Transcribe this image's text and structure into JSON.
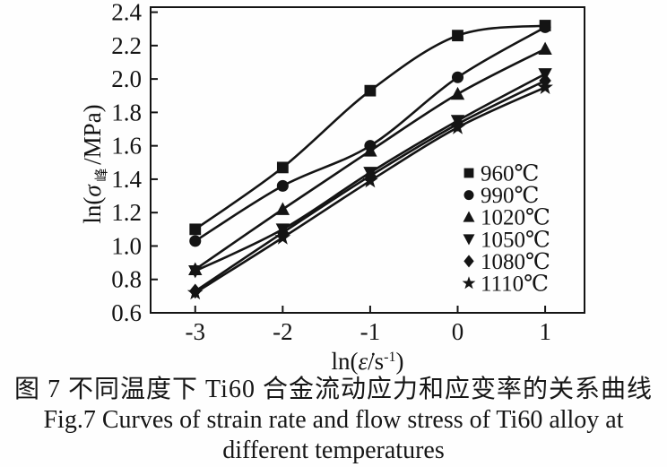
{
  "figure": {
    "caption_zh": "图 7  不同温度下 Ti60 合金流动应力和应变率的关系曲线",
    "caption_en_line1": "Fig.7  Curves of strain rate and flow stress of Ti60 alloy at",
    "caption_en_line2": "different temperatures"
  },
  "chart_data": {
    "type": "line",
    "x": [
      -3,
      -2,
      -1,
      0,
      1
    ],
    "series": [
      {
        "name": "960℃",
        "marker": "square",
        "values": [
          1.1,
          1.47,
          1.93,
          2.26,
          2.32
        ]
      },
      {
        "name": "990℃",
        "marker": "circle",
        "values": [
          1.03,
          1.36,
          1.6,
          2.01,
          2.31
        ]
      },
      {
        "name": "1020℃",
        "marker": "triangle-up",
        "values": [
          0.86,
          1.22,
          1.57,
          1.91,
          2.18
        ]
      },
      {
        "name": "1050℃",
        "marker": "triangle-down",
        "values": [
          0.85,
          1.1,
          1.44,
          1.75,
          2.03
        ]
      },
      {
        "name": "1080℃",
        "marker": "diamond",
        "values": [
          0.73,
          1.08,
          1.42,
          1.73,
          1.99
        ]
      },
      {
        "name": "1110℃",
        "marker": "star",
        "values": [
          0.72,
          1.05,
          1.39,
          1.71,
          1.95
        ]
      }
    ],
    "xlabel": "ln(ε̇/s⁻¹)",
    "ylabel": "ln(σ峰/MPa)",
    "xlabel_parts": {
      "prefix": "ln(",
      "symbol": "ε̇",
      "mid": "/s",
      "sup": "-1",
      "suffix": ")"
    },
    "ylabel_parts": {
      "prefix": "ln(",
      "symbol": "σ",
      "sub": "峰",
      "suffix": "/MPa)"
    },
    "xticks": [
      -3,
      -2,
      -1,
      0,
      1
    ],
    "yticks": [
      0.6,
      0.8,
      1.0,
      1.2,
      1.4,
      1.6,
      1.8,
      2.0,
      2.2,
      2.4
    ],
    "xlim": [
      -3.51,
      1.45
    ],
    "ylim": [
      0.6,
      2.43
    ],
    "grid": false,
    "legend_position": "inside-right-middle",
    "line_color": "#141414",
    "background_color": "#fefefe"
  }
}
